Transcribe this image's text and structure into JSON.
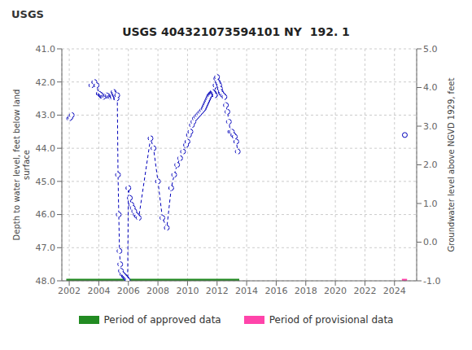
{
  "chart_data": {
    "type": "line",
    "title": "USGS 404321073594101 NY  192. 1",
    "annotations": [
      "USGS"
    ],
    "y_label": "Depth to water level, feet below land\nsurface",
    "y2_label": "Groundwater level above NGVD 1929, feet",
    "xlim": [
      2001.5,
      2025.5
    ],
    "xticks": [
      2002,
      2004,
      2006,
      2008,
      2010,
      2012,
      2014,
      2016,
      2018,
      2020,
      2022,
      2024
    ],
    "ylim": [
      48.0,
      41.0
    ],
    "yticks": [
      {
        "value": 41.0,
        "label": "41.0"
      },
      {
        "value": 42.0,
        "label": "42.0"
      },
      {
        "value": 43.0,
        "label": "43.0"
      },
      {
        "value": 44.0,
        "label": "44.0"
      },
      {
        "value": 45.0,
        "label": "45.0"
      },
      {
        "value": 46.0,
        "label": "46.0"
      },
      {
        "value": 47.0,
        "label": "47.0"
      },
      {
        "value": 48.0,
        "label": "48.0"
      }
    ],
    "y2lim": [
      -1.0,
      5.0
    ],
    "y2ticks": [
      {
        "value": -1.0,
        "label": "-1.0"
      },
      {
        "value": 0.0,
        "label": "0.0"
      },
      {
        "value": 1.0,
        "label": "1.0"
      },
      {
        "value": 2.0,
        "label": "2.0"
      },
      {
        "value": 3.0,
        "label": "3.0"
      },
      {
        "value": 4.0,
        "label": "4.0"
      },
      {
        "value": 5.0,
        "label": "5.0"
      }
    ],
    "grid": true,
    "legend": "bottom",
    "series": [
      {
        "type": "line",
        "color": "#0000bb",
        "line_style": "dashed",
        "marker": "circle",
        "x": [
          2002.0,
          2002.08,
          2002.17
        ],
        "values": [
          43.1,
          43.07,
          43.0
        ]
      },
      {
        "type": "line",
        "color": "#0000bb",
        "line_style": "dashed",
        "marker": "circle",
        "x": [
          2003.5,
          2003.7,
          2003.85,
          2004.0,
          2004.1,
          2004.15,
          2004.2,
          2004.25,
          2004.3,
          2004.4,
          2004.5,
          2004.6,
          2004.7,
          2004.8,
          2004.85,
          2004.9,
          2004.95
        ],
        "values": [
          42.1,
          42.0,
          42.1,
          42.35,
          42.38,
          42.4,
          42.42,
          42.45,
          42.45,
          42.42,
          42.4,
          42.42,
          42.45,
          42.45,
          42.4,
          42.42,
          42.45
        ]
      },
      {
        "type": "line",
        "color": "#0000bb",
        "line_style": "dashed",
        "marker": "circle",
        "x": [
          2004.95,
          2005.0,
          2005.05,
          2005.1,
          2005.15,
          2005.2,
          2005.25,
          2005.3,
          2005.35,
          2005.4,
          2005.45,
          2005.5,
          2005.6,
          2005.7,
          2005.75,
          2005.8,
          2005.85,
          2005.9,
          2005.95,
          2006.0,
          2006.1,
          2006.2,
          2006.3,
          2006.4,
          2006.5,
          2006.6
        ],
        "values": [
          42.45,
          42.3,
          42.35,
          42.4,
          42.45,
          42.5,
          42.4,
          44.8,
          46.0,
          47.1,
          47.5,
          47.7,
          47.8,
          47.85,
          47.87,
          47.9,
          47.92,
          47.95,
          47.98,
          45.2,
          45.5,
          45.7,
          45.8,
          45.9,
          46.0,
          46.05
        ]
      },
      {
        "type": "line",
        "color": "#0000bb",
        "line_style": "dashed",
        "marker": "circle",
        "x": [
          2006.6,
          2006.7,
          2007.5,
          2007.7,
          2008.0,
          2008.3,
          2008.6,
          2008.9,
          2009.1,
          2009.3,
          2009.5,
          2009.7,
          2009.9,
          2010.0,
          2010.1,
          2010.2,
          2010.3,
          2010.4,
          2010.5,
          2010.6,
          2010.7,
          2010.8,
          2010.9,
          2011.0,
          2011.1,
          2011.15,
          2011.2,
          2011.25,
          2011.3,
          2011.35,
          2011.4,
          2011.45,
          2011.5,
          2011.55,
          2011.6,
          2011.65,
          2011.7,
          2011.75,
          2011.8,
          2011.85
        ],
        "values": [
          46.05,
          46.1,
          43.7,
          44.0,
          45.0,
          46.1,
          46.4,
          45.2,
          44.8,
          44.5,
          44.3,
          44.1,
          43.9,
          43.8,
          43.6,
          43.5,
          43.3,
          43.2,
          43.1,
          43.05,
          43.0,
          42.95,
          42.9,
          42.85,
          42.8,
          42.75,
          42.7,
          42.65,
          42.6,
          42.55,
          42.5,
          42.45,
          42.4,
          42.38,
          42.35,
          42.33,
          42.3,
          42.32,
          42.35,
          42.4
        ]
      },
      {
        "type": "line",
        "color": "#0000bb",
        "line_style": "dashed",
        "marker": "circle",
        "x": [
          2011.85,
          2011.9,
          2011.95,
          2012.0,
          2012.05,
          2012.1,
          2012.15,
          2012.2,
          2012.25,
          2012.3,
          2012.4,
          2012.5,
          2012.6,
          2012.7,
          2012.8,
          2012.9,
          2013.0,
          2013.1,
          2013.2,
          2013.3,
          2013.4
        ],
        "values": [
          42.4,
          42.1,
          41.9,
          41.85,
          42.0,
          42.05,
          42.1,
          42.2,
          42.3,
          42.35,
          42.4,
          42.45,
          42.7,
          42.9,
          43.2,
          43.5,
          43.5,
          43.6,
          43.65,
          43.8,
          44.1
        ]
      },
      {
        "type": "line",
        "color": "#0000bb",
        "line_style": "none",
        "marker": "circle",
        "x": [
          2024.7
        ],
        "values": [
          43.6
        ]
      },
      {
        "type": "period_bar",
        "name": "Period of approved data",
        "color": "#228B22",
        "x_start": 2001.8,
        "x_end": 2013.5,
        "y": 48.0,
        "height": 0.12
      },
      {
        "type": "period_bar",
        "name": "Period of provisional data",
        "color": "#ff44aa",
        "x_start": 2024.5,
        "x_end": 2024.85,
        "y": 48.0,
        "height": 0.12
      }
    ]
  }
}
